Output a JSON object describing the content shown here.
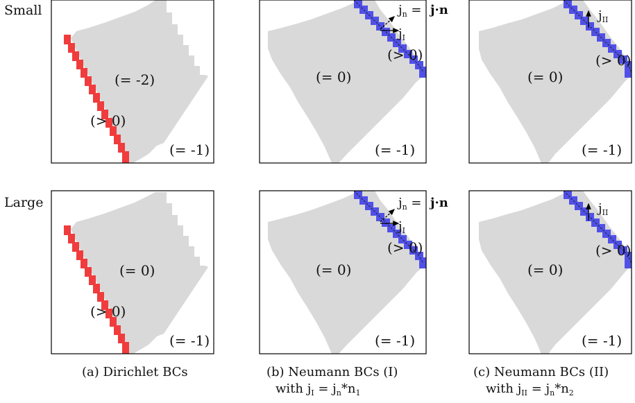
{
  "row_labels": [
    "Small",
    "Large"
  ],
  "panels": [
    {
      "lower": "(= -1)",
      "main": "(= -2)",
      "pos": "(> 0)"
    },
    {
      "lower": "(= -1)",
      "main": "(= 0)",
      "pos": "(> 0)",
      "jn": "j",
      "jn_sub": "n",
      "eq": "=",
      "jdotn": "j·n",
      "jflux": "j",
      "jflux_sub": "I"
    },
    {
      "lower": "(= -1)",
      "main": "(= 0)",
      "pos": "(> 0)",
      "jflux": "j",
      "jflux_sub": "II"
    },
    {
      "lower": "(= -1)",
      "main": "(= 0)",
      "pos": "(> 0)"
    },
    {
      "lower": "(= -1)",
      "main": "(= 0)",
      "pos": "(> 0)",
      "jn": "j",
      "jn_sub": "n",
      "eq": "=",
      "jdotn": "j·n",
      "jflux": "j",
      "jflux_sub": "I"
    },
    {
      "lower": "(= -1)",
      "main": "(= 0)",
      "pos": "(> 0)",
      "jflux": "j",
      "jflux_sub": "II"
    }
  ],
  "captions": [
    {
      "line1": "(a) Dirichlet BCs"
    },
    {
      "line1": "(b) Neumann BCs (I)",
      "line2": "with j",
      "sub1": "I",
      "mid": " = j",
      "sub2": "n",
      "end": "*n",
      "sub3": "1"
    },
    {
      "line1": "(c) Neumann BCs (II)",
      "line2": "with j",
      "sub1": "II",
      "mid": " = j",
      "sub2": "n",
      "end": "*n",
      "sub3": "2"
    }
  ],
  "colors": {
    "region": "#d9d9d9",
    "dirichlet": "#f03c3c",
    "neumann": "#5050e8",
    "frame": "#000000"
  }
}
